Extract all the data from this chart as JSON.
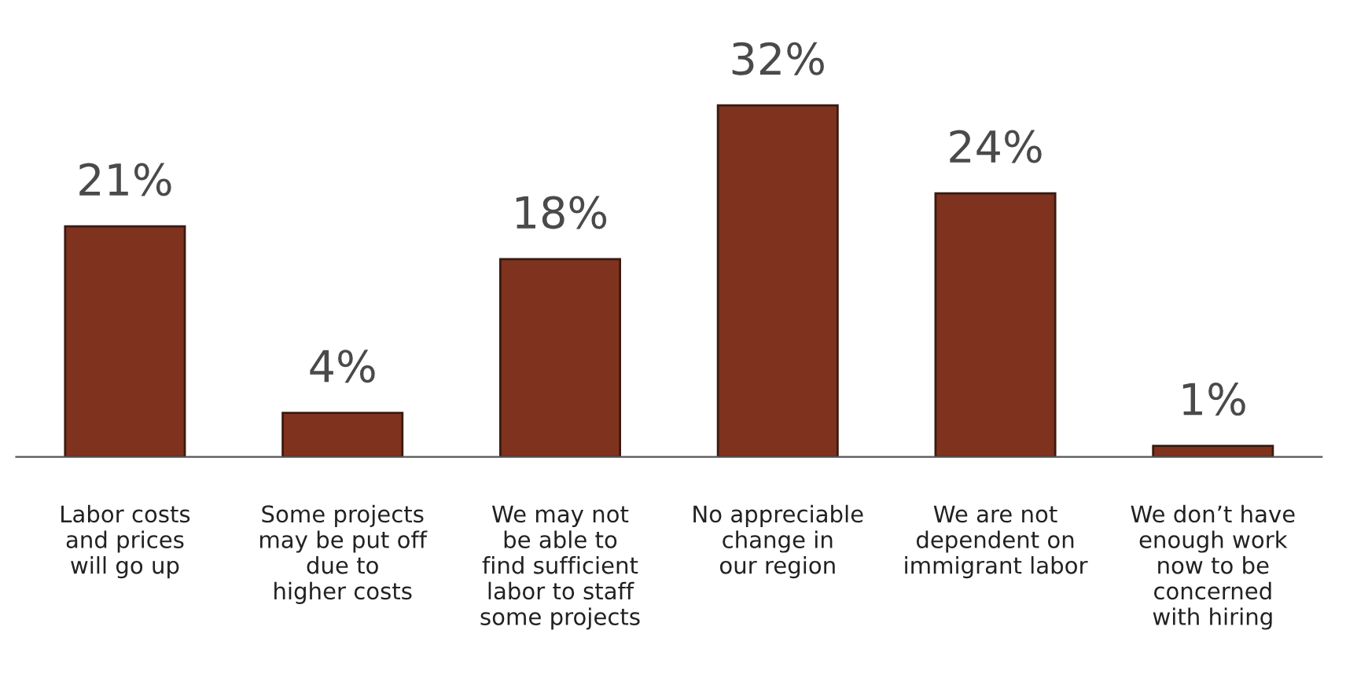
{
  "chart_data": {
    "type": "bar",
    "categories": [
      "Labor costs\nand prices\nwill go up",
      "Some projects\nmay be put off\ndue to\nhigher costs",
      "We may not\nbe able to\nfind sufficient\nlabor to staff\nsome projects",
      "No appreciable\nchange in\nour region",
      "We are not\ndependent on\nimmigrant labor",
      "We don’t have\nenough work\nnow to be\nconcerned\nwith hiring"
    ],
    "values": [
      21,
      4,
      18,
      32,
      24,
      1
    ],
    "value_labels": [
      "21%",
      "4%",
      "18%",
      "32%",
      "24%",
      "1%"
    ],
    "color": "#7f321e",
    "grid": false,
    "legend": false
  }
}
